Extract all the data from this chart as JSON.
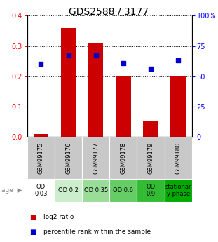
{
  "title": "GDS2588 / 3177",
  "samples": [
    "GSM99175",
    "GSM99176",
    "GSM99177",
    "GSM99178",
    "GSM99179",
    "GSM99180"
  ],
  "log2_ratio": [
    0.01,
    0.36,
    0.31,
    0.2,
    0.05,
    0.2
  ],
  "percentile_values": [
    60,
    67,
    67,
    61,
    56,
    63
  ],
  "bar_color": "#cc0000",
  "dot_color": "#0000cc",
  "ylim_left": [
    0,
    0.4
  ],
  "ylim_right": [
    0,
    100
  ],
  "yticks_left": [
    0,
    0.1,
    0.2,
    0.3,
    0.4
  ],
  "yticks_right": [
    0,
    25,
    50,
    75,
    100
  ],
  "ytick_labels_right": [
    "0",
    "25",
    "50",
    "75",
    "100%"
  ],
  "age_labels": [
    "OD\n0.03",
    "OD 0.2",
    "OD 0.35",
    "OD 0.6",
    "OD\n0.9",
    "stationar\ny phase"
  ],
  "age_bg_colors": [
    "#ffffff",
    "#cceecc",
    "#99dd99",
    "#66cc66",
    "#33bb33",
    "#00aa00"
  ],
  "sample_bg_color": "#c8c8c8",
  "legend_label1": "log2 ratio",
  "legend_label2": "percentile rank within the sample",
  "title_fontsize": 10,
  "tick_fontsize": 7,
  "sample_fontsize": 6,
  "age_fontsize": 6,
  "legend_fontsize": 6.5
}
